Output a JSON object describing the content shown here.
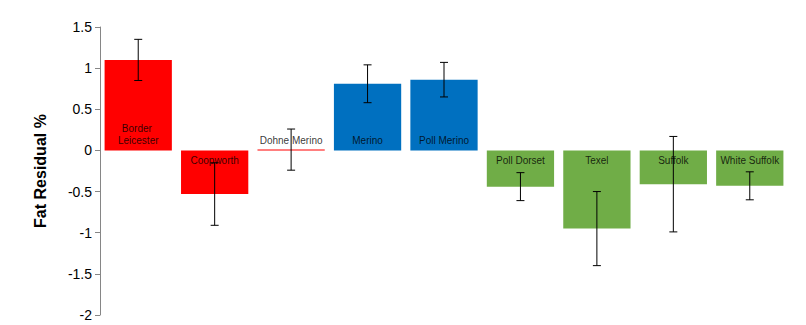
{
  "chart_data": {
    "type": "bar",
    "y_label": "Fat Residual %",
    "categories": [
      "Border Leicester",
      "Coopworth",
      "Dohne Merino",
      "Merino",
      "Poll Merino",
      "Poll Dorset",
      "Texel",
      "Suffolk",
      "White Suffolk"
    ],
    "values": [
      1.1,
      -0.53,
      0.01,
      0.81,
      0.86,
      -0.44,
      -0.95,
      -0.41,
      -0.43
    ],
    "errors": [
      0.25,
      0.38,
      0.25,
      0.23,
      0.21,
      0.17,
      0.45,
      0.58,
      0.17
    ],
    "colors": [
      "#ff0000",
      "#ff0000",
      "#ff0000",
      "#0070c0",
      "#0070c0",
      "#70ad47",
      "#70ad47",
      "#70ad47",
      "#70ad47"
    ],
    "ylim": [
      -2,
      1.5
    ],
    "yticks": [
      -2,
      -1.5,
      -1,
      -0.5,
      0,
      0.5,
      1,
      1.5
    ],
    "grid": false,
    "tick_labels": "y"
  }
}
